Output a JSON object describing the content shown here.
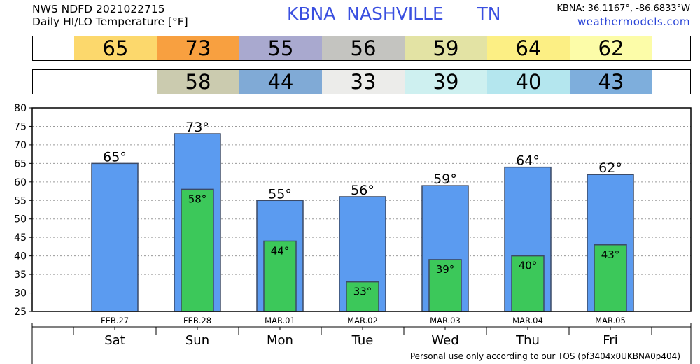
{
  "header": {
    "line1": "NWS NDFD 2021022715",
    "line2": "Daily HI/LO Temperature [°F]",
    "station": "KBNA  NASHVILLE      TN",
    "coords": "KBNA: 36.1167°, -86.6833°W",
    "site": "weathermodels.com"
  },
  "colors": {
    "hi_bar": "#5b9bf0",
    "lo_bar": "#3cc85a",
    "hi_strip": [
      "#fcd86c",
      "#f8a040",
      "#a9a9cf",
      "#c4c4c0",
      "#e3e3a4",
      "#fcef84",
      "#fcfca8"
    ],
    "lo_strip": [
      "#cbcbaf",
      "#80aad6",
      "#ececea",
      "#cef0f0",
      "#b4e6ee",
      "#7eaedc"
    ]
  },
  "hi_strip_values": [
    "65",
    "73",
    "55",
    "56",
    "59",
    "64",
    "62"
  ],
  "lo_strip_values": [
    "58",
    "44",
    "33",
    "39",
    "40",
    "43"
  ],
  "footer": "Personal use only according to our TOS (pf3404x0UKBNA0p404)",
  "chart_data": {
    "type": "bar",
    "categories": [
      "Sat",
      "Sun",
      "Mon",
      "Tue",
      "Wed",
      "Thu",
      "Fri"
    ],
    "dates": [
      "FEB.27",
      "FEB.28",
      "MAR.01",
      "MAR.02",
      "MAR.03",
      "MAR.04",
      "MAR.05"
    ],
    "series": [
      {
        "values": [
          65,
          73,
          55,
          56,
          59,
          64,
          62
        ]
      },
      {
        "values": [
          null,
          58,
          44,
          33,
          39,
          40,
          43
        ]
      }
    ],
    "ylim": [
      25,
      80
    ],
    "yticks": [
      25,
      30,
      35,
      40,
      45,
      50,
      55,
      60,
      65,
      70,
      75,
      80
    ],
    "grid": true
  }
}
